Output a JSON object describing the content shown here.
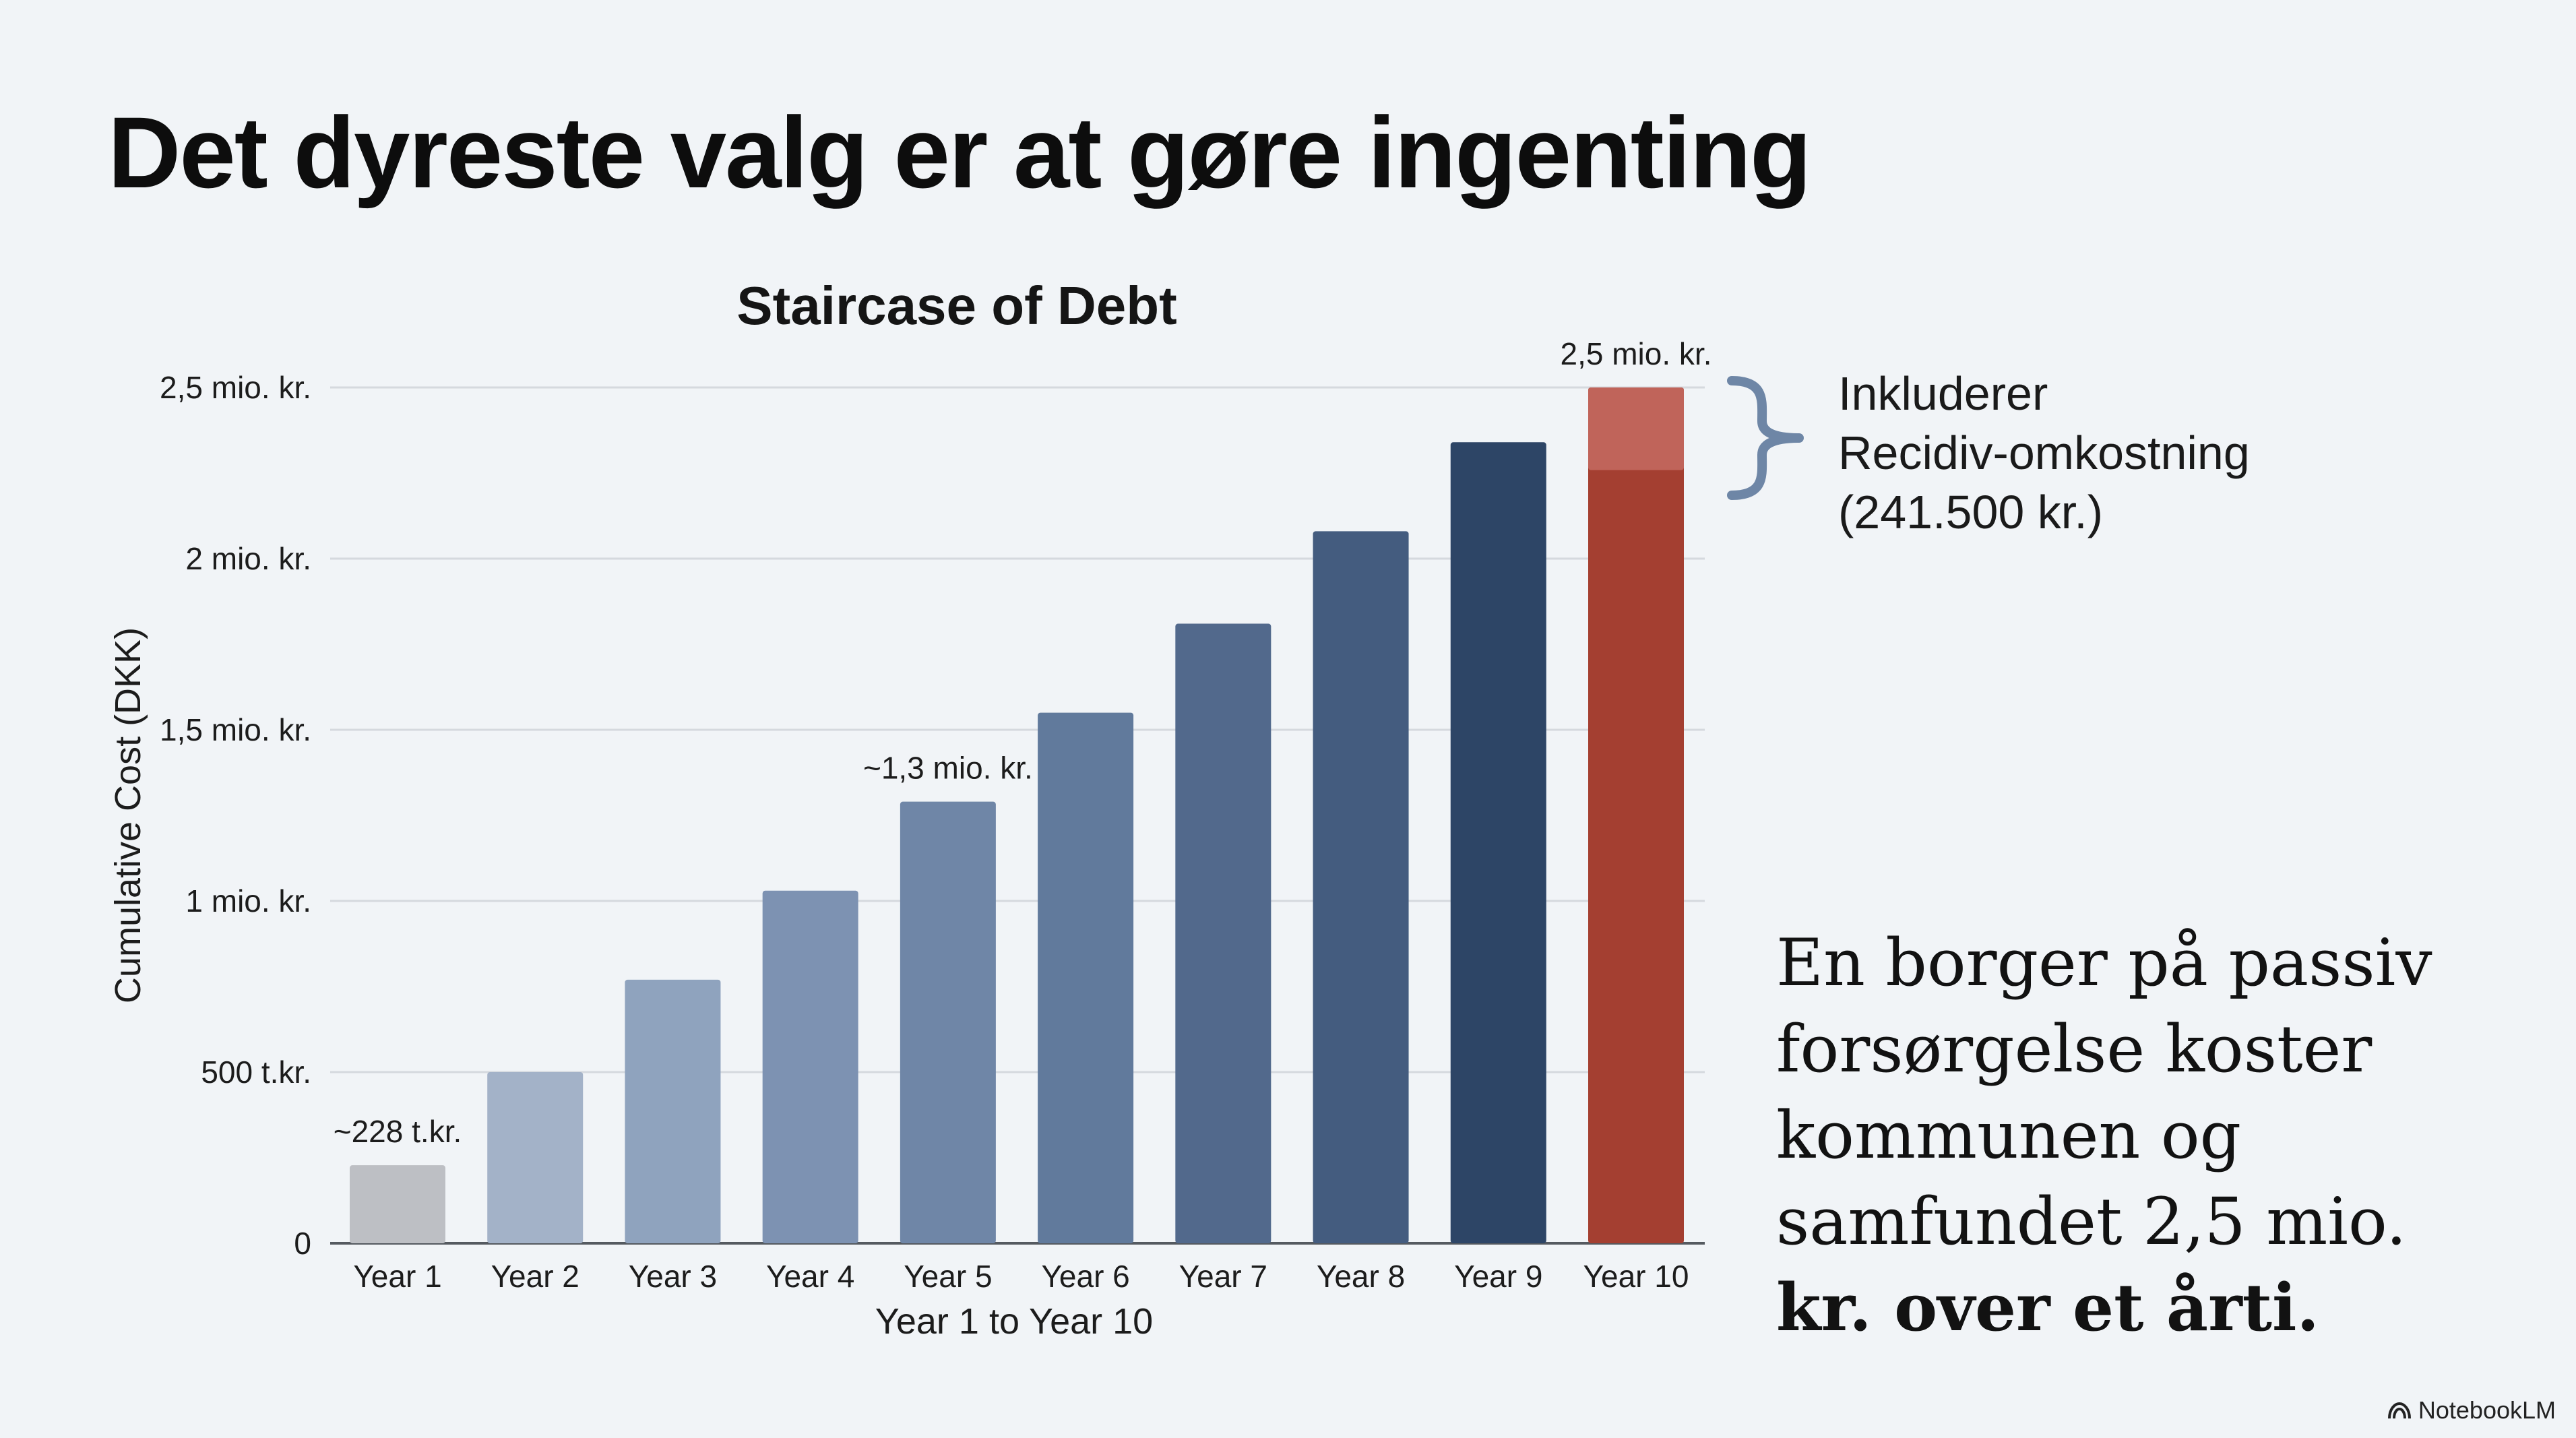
{
  "page": {
    "title": "Det dyreste valg er at gøre ingenting"
  },
  "chart_data": {
    "type": "bar",
    "title": "Staircase of Debt",
    "xlabel": "Year 1 to Year 10",
    "ylabel": "Cumulative Cost (DKK)",
    "categories": [
      "Year 1",
      "Year 2",
      "Year 3",
      "Year 4",
      "Year 5",
      "Year 6",
      "Year 7",
      "Year 8",
      "Year 9",
      "Year 10"
    ],
    "values": [
      228000,
      500000,
      770000,
      1030000,
      1290000,
      1550000,
      1810000,
      2080000,
      2340000,
      2500000
    ],
    "bar_colors": [
      "#bdbfc4",
      "#a3b2c8",
      "#8fa3be",
      "#7d92b2",
      "#6f86a7",
      "#617a9c",
      "#52698c",
      "#445c7f",
      "#2d4566",
      "#a43f31"
    ],
    "ylim": [
      0,
      2500000
    ],
    "yticks": [
      0,
      500000,
      1000000,
      1500000,
      2000000,
      2500000
    ],
    "ytick_labels": [
      "0",
      "500 t.kr.",
      "1 mio. kr.",
      "1,5 mio. kr.",
      "2 mio. kr.",
      "2,5 mio. kr."
    ],
    "grid": true,
    "highlight": {
      "category": "Year 10",
      "segment_value": 241500,
      "segment_color": "#c0645a"
    },
    "annotations": [
      {
        "category": "Year 1",
        "text": "~228 t.kr."
      },
      {
        "category": "Year 5",
        "text": "~1,3 mio. kr."
      },
      {
        "category": "Year 10",
        "text": "2,5 mio. kr."
      }
    ]
  },
  "callout": {
    "lines": [
      "Inkluderer",
      "Recidiv-omkostning",
      "(241.500 kr.)"
    ],
    "brace_color": "#6e86a6"
  },
  "side_note": {
    "lines": [
      "En borger på passiv",
      "forsørgelse koster",
      "kommunen og",
      "samfundet 2,5 mio."
    ],
    "bold_line": "kr. over et årti."
  },
  "brand": {
    "name": "NotebookLM"
  }
}
